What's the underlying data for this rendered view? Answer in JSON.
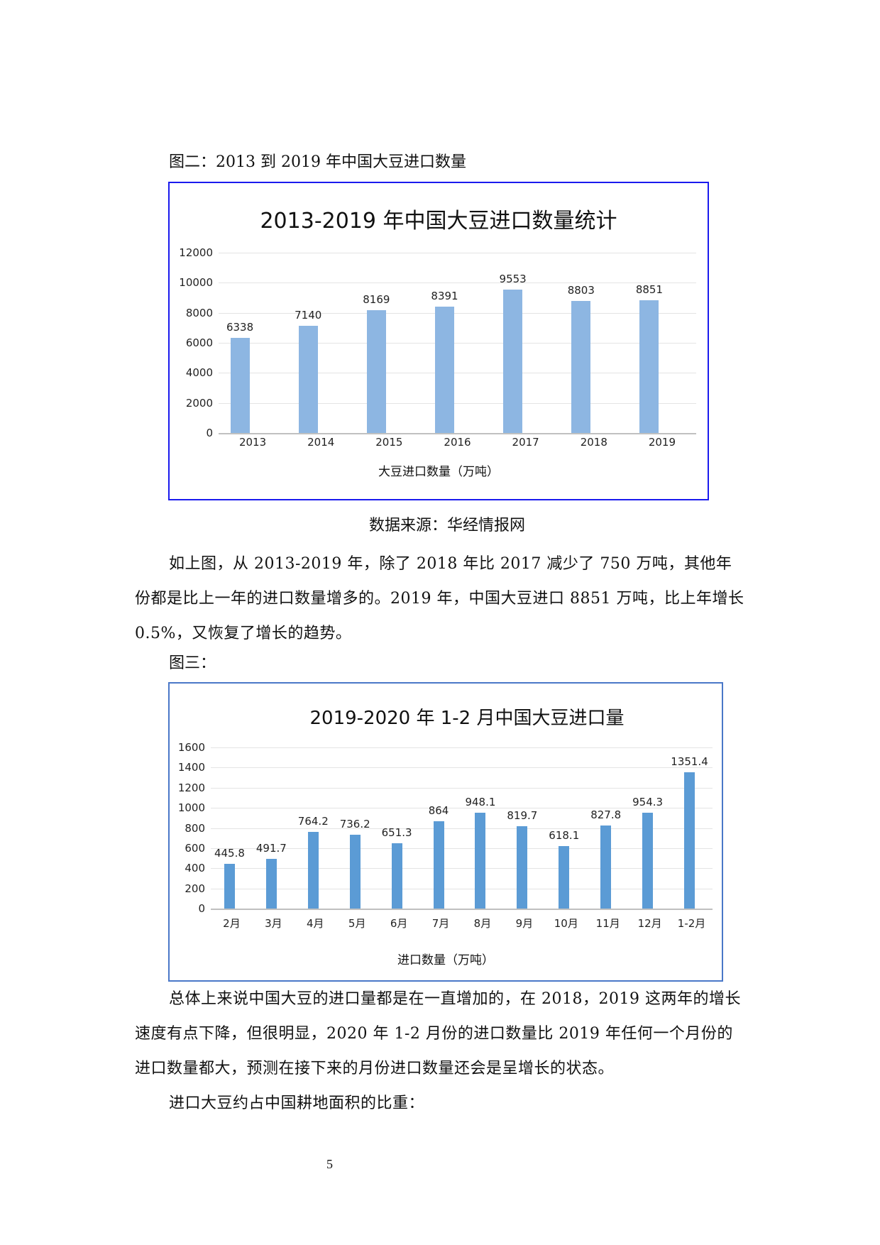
{
  "figure2": {
    "caption": "图二：2013 到 2019  年中国大豆进口数量",
    "source": "数据来源：华经情报网"
  },
  "paragraph1": "如上图，从 2013-2019 年，除了 2018 年比 2017 减少了 750 万吨，其他年份都是比上一年的进口数量增多的。2019 年，中国大豆进口 8851 万吨，比上年增长 0.5%，又恢复了增长的趋势。",
  "figure3": {
    "caption": "图三："
  },
  "paragraph2": "总体上来说中国大豆的进口量都是在一直增加的，在 2018，2019 这两年的增长速度有点下降，但很明显，2020 年 1-2  月份的进口数量比 2019  年任何一个月份的进口数量都大，预测在接下来的月份进口数量还会是呈增长的状态。",
  "paragraph3": "进口大豆约占中国耕地面积的比重：",
  "page_number": "5",
  "colors": {
    "chart1_bar": "#8db6e2",
    "chart2_bar": "#5b9bd5",
    "chart1_border": "#1a1aee",
    "chart2_border": "#4a78c8"
  },
  "chart_data": [
    {
      "type": "bar",
      "title": "2013-2019 年中国大豆进口数量统计",
      "xlabel": "大豆进口数量（万吨）",
      "ylabel": "",
      "categories": [
        "2013",
        "2014",
        "2015",
        "2016",
        "2017",
        "2018",
        "2019"
      ],
      "values": [
        6338,
        7140,
        8169,
        8391,
        9553,
        8803,
        8851
      ],
      "data_labels": [
        "6338",
        "7140",
        "8169",
        "8391",
        "9553",
        "8803",
        "8851"
      ],
      "yticks": [
        "0",
        "2000",
        "4000",
        "6000",
        "8000",
        "10000",
        "12000"
      ],
      "ylim": [
        0,
        12000
      ],
      "grid": true,
      "legend": "none"
    },
    {
      "type": "bar",
      "title": "2019-2020 年 1-2 月中国大豆进口量",
      "xlabel": "进口数量（万吨）",
      "ylabel": "",
      "categories": [
        "2月",
        "3月",
        "4月",
        "5月",
        "6月",
        "7月",
        "8月",
        "9月",
        "10月",
        "11月",
        "12月",
        "1-2月"
      ],
      "values": [
        445.8,
        491.7,
        764.2,
        736.2,
        651.3,
        864,
        948.1,
        819.7,
        618.1,
        827.8,
        954.3,
        1351.4
      ],
      "data_labels": [
        "445.8",
        "491.7",
        "764.2",
        "736.2",
        "651.3",
        "864",
        "948.1",
        "819.7",
        "618.1",
        "827.8",
        "954.3",
        "1351.4"
      ],
      "yticks": [
        "0",
        "200",
        "400",
        "600",
        "800",
        "1000",
        "1200",
        "1400",
        "1600"
      ],
      "ylim": [
        0,
        1600
      ],
      "grid": true,
      "legend": "none"
    }
  ]
}
